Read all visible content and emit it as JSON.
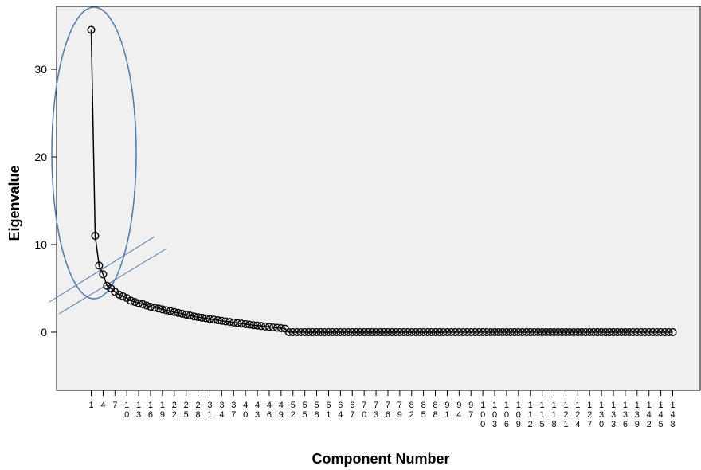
{
  "chart_data": {
    "type": "line",
    "title": "",
    "xlabel": "Component Number",
    "ylabel": "Eigenvalue",
    "ylim": [
      -7,
      37
    ],
    "y_ticks": [
      0,
      10,
      20,
      30
    ],
    "x_range": [
      1,
      148
    ],
    "x_tick_labels": [
      "1",
      "4",
      "7",
      "10",
      "13",
      "16",
      "19",
      "22",
      "25",
      "28",
      "31",
      "34",
      "37",
      "40",
      "43",
      "46",
      "49",
      "52",
      "55",
      "58",
      "61",
      "64",
      "67",
      "70",
      "73",
      "76",
      "79",
      "82",
      "85",
      "88",
      "91",
      "94",
      "97",
      "100",
      "103",
      "106",
      "109",
      "112",
      "115",
      "118",
      "121",
      "124",
      "127",
      "130",
      "133",
      "136",
      "139",
      "142",
      "145",
      "148"
    ],
    "grid": false,
    "plot_background": "#f0f0f0",
    "line_color": "#000000",
    "marker": "open-circle",
    "annotation_color": "#4a78b0",
    "annotations": [
      "ellipse around first components",
      "two parallel lines marking the elbow"
    ],
    "series": [
      {
        "values": [
          34.5,
          11.0,
          7.6,
          6.6,
          5.3,
          5.0,
          4.6,
          4.3,
          4.1,
          3.9,
          3.6,
          3.45,
          3.3,
          3.2,
          3.05,
          2.9,
          2.8,
          2.7,
          2.6,
          2.5,
          2.4,
          2.3,
          2.2,
          2.1,
          2.0,
          1.9,
          1.8,
          1.72,
          1.65,
          1.58,
          1.5,
          1.43,
          1.36,
          1.3,
          1.23,
          1.17,
          1.1,
          1.04,
          0.98,
          0.92,
          0.86,
          0.8,
          0.75,
          0.7,
          0.65,
          0.6,
          0.55,
          0.5,
          0.45,
          0.4,
          0.0
        ]
      }
    ],
    "n_components": 148
  }
}
